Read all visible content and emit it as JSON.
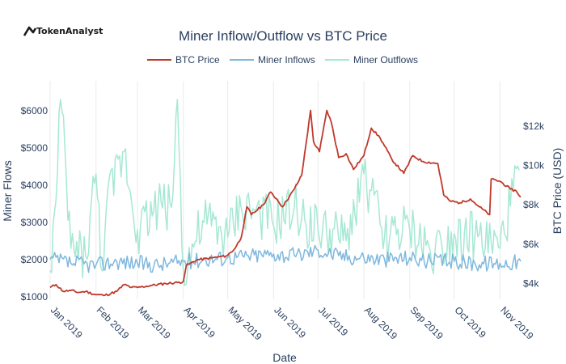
{
  "brand": {
    "name": "TokenAnalyst"
  },
  "colors": {
    "btc_price": "#c0392b",
    "miner_inflows": "#7fb8de",
    "miner_outflows": "#a6e8d4",
    "axis_text": "#2a3f5f",
    "grid": "#ebebeb"
  },
  "chart_data": {
    "type": "line",
    "title": "Miner Inflow/Outflow vs BTC Price",
    "xlabel": "Date",
    "ylabel": "Miner Flows",
    "y2label": "BTC Price (USD)",
    "x_range": [
      "2019-01-01",
      "2019-11-15"
    ],
    "ylim": [
      930,
      6800
    ],
    "y2lim": [
      3200,
      14300
    ],
    "y_ticks": [
      {
        "value": 1000,
        "label": "$1000"
      },
      {
        "value": 2000,
        "label": "$2000"
      },
      {
        "value": 3000,
        "label": "$3000"
      },
      {
        "value": 4000,
        "label": "$4000"
      },
      {
        "value": 5000,
        "label": "$5000"
      },
      {
        "value": 6000,
        "label": "$6000"
      }
    ],
    "y2_ticks": [
      {
        "value": 4000,
        "label": "$4k"
      },
      {
        "value": 6000,
        "label": "$6k"
      },
      {
        "value": 8000,
        "label": "$8k"
      },
      {
        "value": 10000,
        "label": "$10k"
      },
      {
        "value": 12000,
        "label": "$12k"
      }
    ],
    "x_ticks": [
      {
        "date": "2019-01-01",
        "label": "Jan 2019"
      },
      {
        "date": "2019-02-01",
        "label": "Feb 2019"
      },
      {
        "date": "2019-03-01",
        "label": "Mar 2019"
      },
      {
        "date": "2019-04-01",
        "label": "Apr 2019"
      },
      {
        "date": "2019-05-01",
        "label": "May 2019"
      },
      {
        "date": "2019-06-01",
        "label": "Jun 2019"
      },
      {
        "date": "2019-07-01",
        "label": "Jul 2019"
      },
      {
        "date": "2019-08-01",
        "label": "Aug 2019"
      },
      {
        "date": "2019-09-01",
        "label": "Sep 2019"
      },
      {
        "date": "2019-10-01",
        "label": "Oct 2019"
      },
      {
        "date": "2019-11-01",
        "label": "Nov 2019"
      }
    ],
    "grid": true,
    "legend_position": "top",
    "series": [
      {
        "name": "BTC Price",
        "axis": "right",
        "color": "#c0392b",
        "points": [
          [
            "2019-01-01",
            3800
          ],
          [
            "2019-01-05",
            3950
          ],
          [
            "2019-01-10",
            3600
          ],
          [
            "2019-01-15",
            3650
          ],
          [
            "2019-01-20",
            3550
          ],
          [
            "2019-01-25",
            3600
          ],
          [
            "2019-01-31",
            3450
          ],
          [
            "2019-02-07",
            3400
          ],
          [
            "2019-02-15",
            3600
          ],
          [
            "2019-02-20",
            3950
          ],
          [
            "2019-02-25",
            3800
          ],
          [
            "2019-03-01",
            3800
          ],
          [
            "2019-03-10",
            3900
          ],
          [
            "2019-03-20",
            4000
          ],
          [
            "2019-03-28",
            4050
          ],
          [
            "2019-04-01",
            4100
          ],
          [
            "2019-04-03",
            4900
          ],
          [
            "2019-04-10",
            5200
          ],
          [
            "2019-04-20",
            5300
          ],
          [
            "2019-04-30",
            5400
          ],
          [
            "2019-05-05",
            5700
          ],
          [
            "2019-05-10",
            6300
          ],
          [
            "2019-05-14",
            7900
          ],
          [
            "2019-05-17",
            7500
          ],
          [
            "2019-05-25",
            8000
          ],
          [
            "2019-05-30",
            8650
          ],
          [
            "2019-06-03",
            8300
          ],
          [
            "2019-06-07",
            7900
          ],
          [
            "2019-06-15",
            8800
          ],
          [
            "2019-06-20",
            9500
          ],
          [
            "2019-06-26",
            12800
          ],
          [
            "2019-06-28",
            11200
          ],
          [
            "2019-07-02",
            10700
          ],
          [
            "2019-07-07",
            12800
          ],
          [
            "2019-07-10",
            12200
          ],
          [
            "2019-07-15",
            10400
          ],
          [
            "2019-07-20",
            10600
          ],
          [
            "2019-07-25",
            9800
          ],
          [
            "2019-08-01",
            10500
          ],
          [
            "2019-08-06",
            11900
          ],
          [
            "2019-08-12",
            11400
          ],
          [
            "2019-08-20",
            10300
          ],
          [
            "2019-08-28",
            9600
          ],
          [
            "2019-09-03",
            10500
          ],
          [
            "2019-09-10",
            10200
          ],
          [
            "2019-09-20",
            10100
          ],
          [
            "2019-09-24",
            8500
          ],
          [
            "2019-09-28",
            8200
          ],
          [
            "2019-10-05",
            8100
          ],
          [
            "2019-10-12",
            8300
          ],
          [
            "2019-10-18",
            7900
          ],
          [
            "2019-10-25",
            7500
          ],
          [
            "2019-10-26",
            9300
          ],
          [
            "2019-11-01",
            9200
          ],
          [
            "2019-11-08",
            8800
          ],
          [
            "2019-11-12",
            8700
          ],
          [
            "2019-11-15",
            8400
          ]
        ]
      },
      {
        "name": "Miner Inflows",
        "axis": "left",
        "color": "#7fb8de",
        "points": [
          [
            "2019-01-01",
            2000
          ],
          [
            "2019-01-15",
            1900
          ],
          [
            "2019-02-01",
            1850
          ],
          [
            "2019-02-15",
            1950
          ],
          [
            "2019-03-01",
            1900
          ],
          [
            "2019-03-15",
            1850
          ],
          [
            "2019-04-01",
            1950
          ],
          [
            "2019-04-15",
            2000
          ],
          [
            "2019-05-01",
            2050
          ],
          [
            "2019-05-15",
            2100
          ],
          [
            "2019-06-01",
            2150
          ],
          [
            "2019-06-15",
            2100
          ],
          [
            "2019-07-01",
            2250
          ],
          [
            "2019-07-15",
            2100
          ],
          [
            "2019-08-01",
            2050
          ],
          [
            "2019-08-15",
            2000
          ],
          [
            "2019-09-01",
            2050
          ],
          [
            "2019-09-15",
            1950
          ],
          [
            "2019-10-01",
            1950
          ],
          [
            "2019-10-15",
            1900
          ],
          [
            "2019-11-01",
            1900
          ],
          [
            "2019-11-15",
            1950
          ]
        ]
      },
      {
        "name": "Miner Outflows",
        "axis": "left",
        "color": "#a6e8d4",
        "points": [
          [
            "2019-01-01",
            1700
          ],
          [
            "2019-01-05",
            3600
          ],
          [
            "2019-01-08",
            6300
          ],
          [
            "2019-01-15",
            2300
          ],
          [
            "2019-01-25",
            2100
          ],
          [
            "2019-02-01",
            4300
          ],
          [
            "2019-02-05",
            1700
          ],
          [
            "2019-02-08",
            3400
          ],
          [
            "2019-02-20",
            4900
          ],
          [
            "2019-03-01",
            2800
          ],
          [
            "2019-03-15",
            3500
          ],
          [
            "2019-03-24",
            3400
          ],
          [
            "2019-03-28",
            6300
          ],
          [
            "2019-04-01",
            1700
          ],
          [
            "2019-04-15",
            3000
          ],
          [
            "2019-05-01",
            2600
          ],
          [
            "2019-05-10",
            3400
          ],
          [
            "2019-05-20",
            3300
          ],
          [
            "2019-06-01",
            2900
          ],
          [
            "2019-06-15",
            3400
          ],
          [
            "2019-06-20",
            3100
          ],
          [
            "2019-07-01",
            2800
          ],
          [
            "2019-07-20",
            2500
          ],
          [
            "2019-08-01",
            4300
          ],
          [
            "2019-08-15",
            2600
          ],
          [
            "2019-09-01",
            2800
          ],
          [
            "2019-09-15",
            2200
          ],
          [
            "2019-10-01",
            2700
          ],
          [
            "2019-10-15",
            2600
          ],
          [
            "2019-11-01",
            2300
          ],
          [
            "2019-11-14",
            4400
          ]
        ]
      }
    ]
  }
}
